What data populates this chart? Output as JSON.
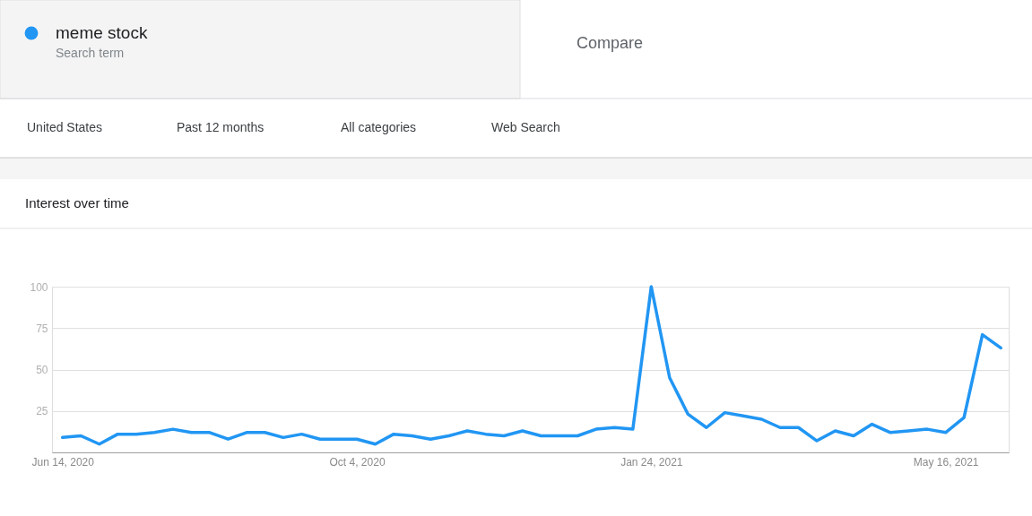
{
  "chart_data": {
    "type": "line",
    "title": "Interest over time",
    "annotations": [
      "Search term",
      "Compare",
      "United States",
      "Past 12 months",
      "All categories",
      "Web Search"
    ],
    "x": [
      "2020-06-14",
      "2020-06-21",
      "2020-06-28",
      "2020-07-05",
      "2020-07-12",
      "2020-07-19",
      "2020-07-26",
      "2020-08-02",
      "2020-08-09",
      "2020-08-16",
      "2020-08-23",
      "2020-08-30",
      "2020-09-06",
      "2020-09-13",
      "2020-09-20",
      "2020-09-27",
      "2020-10-04",
      "2020-10-11",
      "2020-10-18",
      "2020-10-25",
      "2020-11-01",
      "2020-11-08",
      "2020-11-15",
      "2020-11-22",
      "2020-11-29",
      "2020-12-06",
      "2020-12-13",
      "2020-12-20",
      "2020-12-27",
      "2021-01-03",
      "2021-01-10",
      "2021-01-17",
      "2021-01-24",
      "2021-01-31",
      "2021-02-07",
      "2021-02-14",
      "2021-02-21",
      "2021-02-28",
      "2021-03-07",
      "2021-03-14",
      "2021-03-21",
      "2021-03-28",
      "2021-04-04",
      "2021-04-11",
      "2021-04-18",
      "2021-04-25",
      "2021-05-02",
      "2021-05-09",
      "2021-05-16",
      "2021-05-23",
      "2021-05-30",
      "2021-06-06"
    ],
    "series": [
      {
        "name": "meme stock",
        "color": "#2196f3",
        "values": [
          9,
          10,
          5,
          11,
          11,
          12,
          14,
          12,
          12,
          8,
          12,
          12,
          9,
          11,
          8,
          8,
          8,
          5,
          11,
          10,
          8,
          10,
          13,
          11,
          10,
          13,
          10,
          10,
          10,
          14,
          15,
          14,
          100,
          45,
          23,
          15,
          24,
          22,
          20,
          15,
          15,
          7,
          13,
          10,
          17,
          12,
          13,
          14,
          12,
          21,
          71,
          63
        ]
      }
    ],
    "xlim": [
      "2020-06-10",
      "2021-06-09"
    ],
    "xticks": [
      {
        "value": "2020-06-14",
        "label": "Jun 14, 2020"
      },
      {
        "value": "2020-10-04",
        "label": "Oct 4, 2020"
      },
      {
        "value": "2021-01-24",
        "label": "Jan 24, 2021"
      },
      {
        "value": "2021-05-16",
        "label": "May 16, 2021"
      }
    ],
    "ylim": [
      0,
      100
    ],
    "yticks": [
      25,
      50,
      75,
      100
    ],
    "grid": "y",
    "legend": "top left",
    "marker": "none",
    "line_style": "solid"
  }
}
